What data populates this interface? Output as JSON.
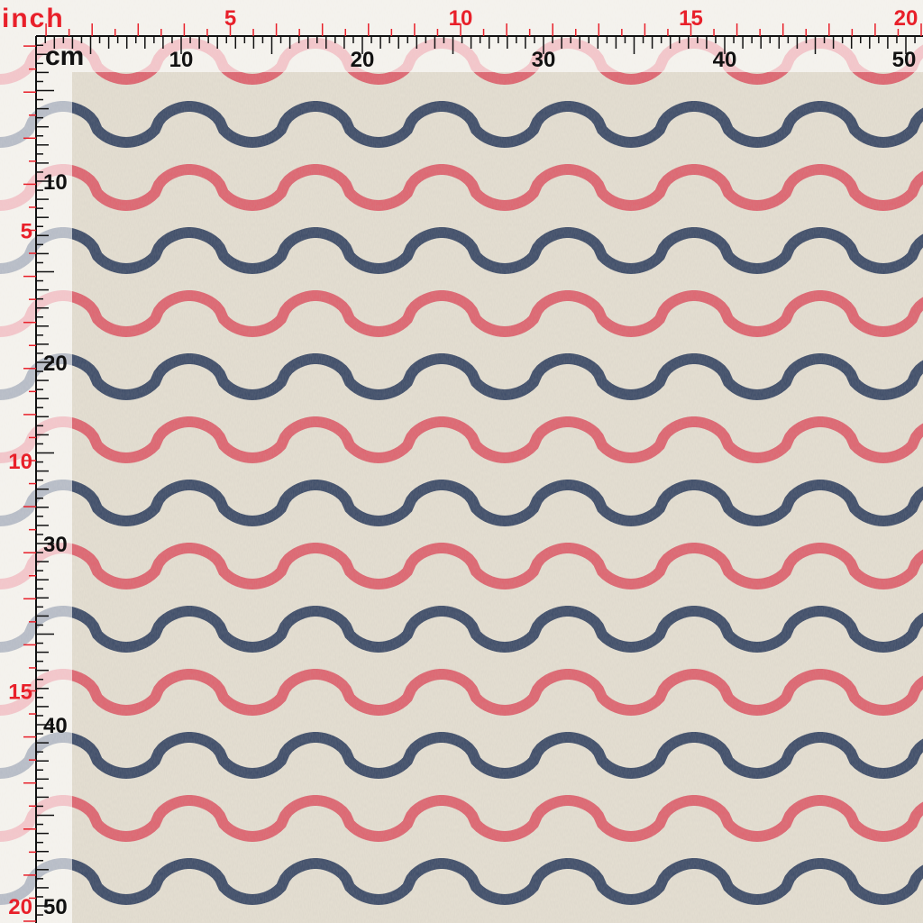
{
  "ruler": {
    "inch_unit": "inch",
    "cm_unit": "cm",
    "top_inch_labels": [
      "5",
      "10",
      "15",
      "20"
    ],
    "top_cm_labels": [
      "10",
      "20",
      "30",
      "40",
      "50"
    ],
    "left_cm_labels": [
      "10",
      "20",
      "30",
      "40",
      "50"
    ],
    "left_inch_labels": [
      "5",
      "10",
      "15",
      "20"
    ]
  }
}
